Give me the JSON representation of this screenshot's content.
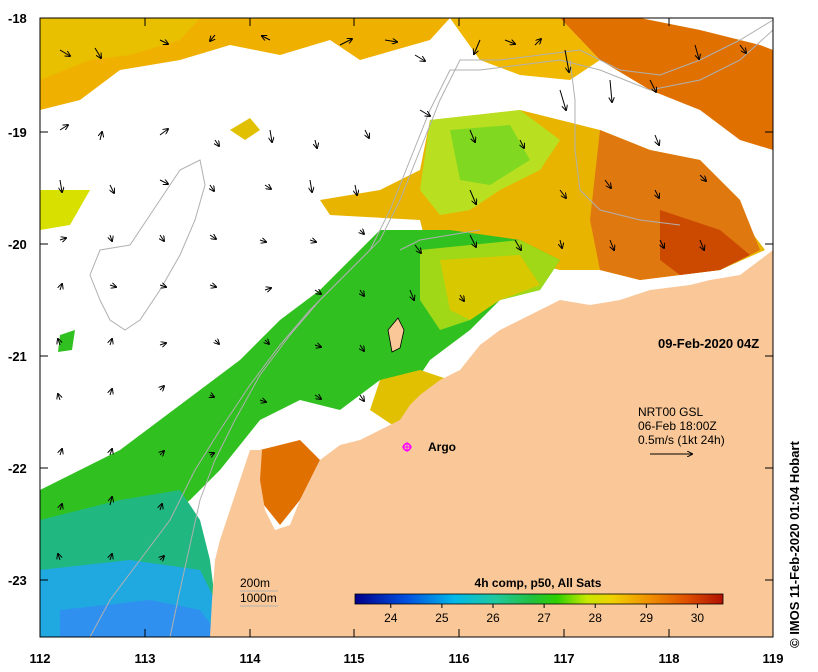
{
  "map": {
    "lon_ticks": [
      "112",
      "113",
      "114",
      "115",
      "116",
      "117",
      "118",
      "119"
    ],
    "lat_ticks": [
      "-18",
      "-19",
      "-20",
      "-21",
      "-22",
      "-23"
    ],
    "lon_range": [
      112,
      119
    ],
    "lat_range": [
      -18,
      -23.5
    ],
    "timestamp": "09-Feb-2020 04Z",
    "argo_label": "Argo",
    "current_info": {
      "line1": "NRT00 GSL",
      "line2": "06-Feb 18:00Z",
      "line3": "0.5m/s (1kt 24h)"
    },
    "depth_legend": {
      "d200": "200m",
      "d1000": "1000m"
    },
    "colorbar": {
      "title": "4h comp, p50, All Sats",
      "ticks": [
        "24",
        "25",
        "26",
        "27",
        "28",
        "29",
        "30"
      ],
      "range": [
        23.3,
        30.5
      ]
    },
    "credit": "© IMOS 11-Feb-2020 01:04 Hobart",
    "colors": {
      "land": "#fac898",
      "argo": "#ff00ff",
      "arrow": "#000000",
      "isobath": "#b0b0b0"
    }
  }
}
